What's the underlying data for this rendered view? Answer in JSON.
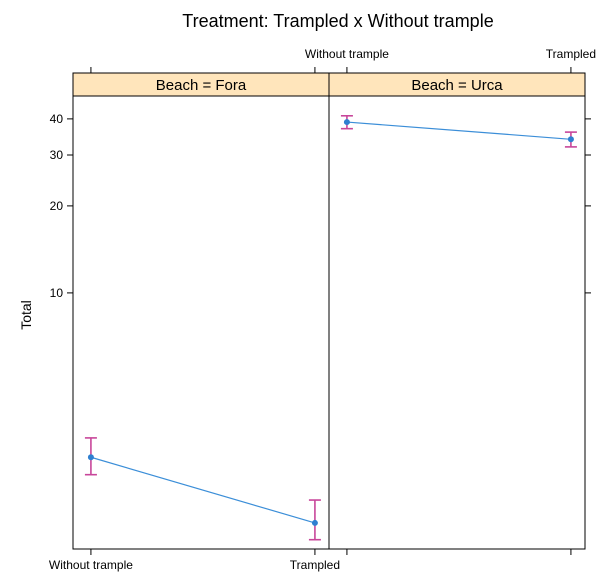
{
  "chart_data": {
    "type": "line",
    "title": "Treatment: Trampled x Without trample",
    "ylabel": "Total",
    "y_scale": "log",
    "ylim": [
      1.3,
      48
    ],
    "y_ticks": [
      10,
      20,
      30,
      40
    ],
    "categories": [
      "Without trample",
      "Trampled"
    ],
    "grid": false,
    "error_bars": true,
    "colors": {
      "line": "#3b8ed8",
      "point": "#2f7fd0",
      "error_bar": "#c8469a",
      "strip": "#ffe5bb"
    },
    "panels": [
      {
        "strip_label": "Beach = Fora",
        "values": [
          2.7,
          1.6
        ],
        "lower": [
          2.35,
          1.4
        ],
        "upper": [
          3.15,
          1.92
        ]
      },
      {
        "strip_label": "Beach = Urca",
        "values": [
          39,
          34
        ],
        "lower": [
          37,
          32
        ],
        "upper": [
          41,
          36
        ]
      }
    ]
  }
}
